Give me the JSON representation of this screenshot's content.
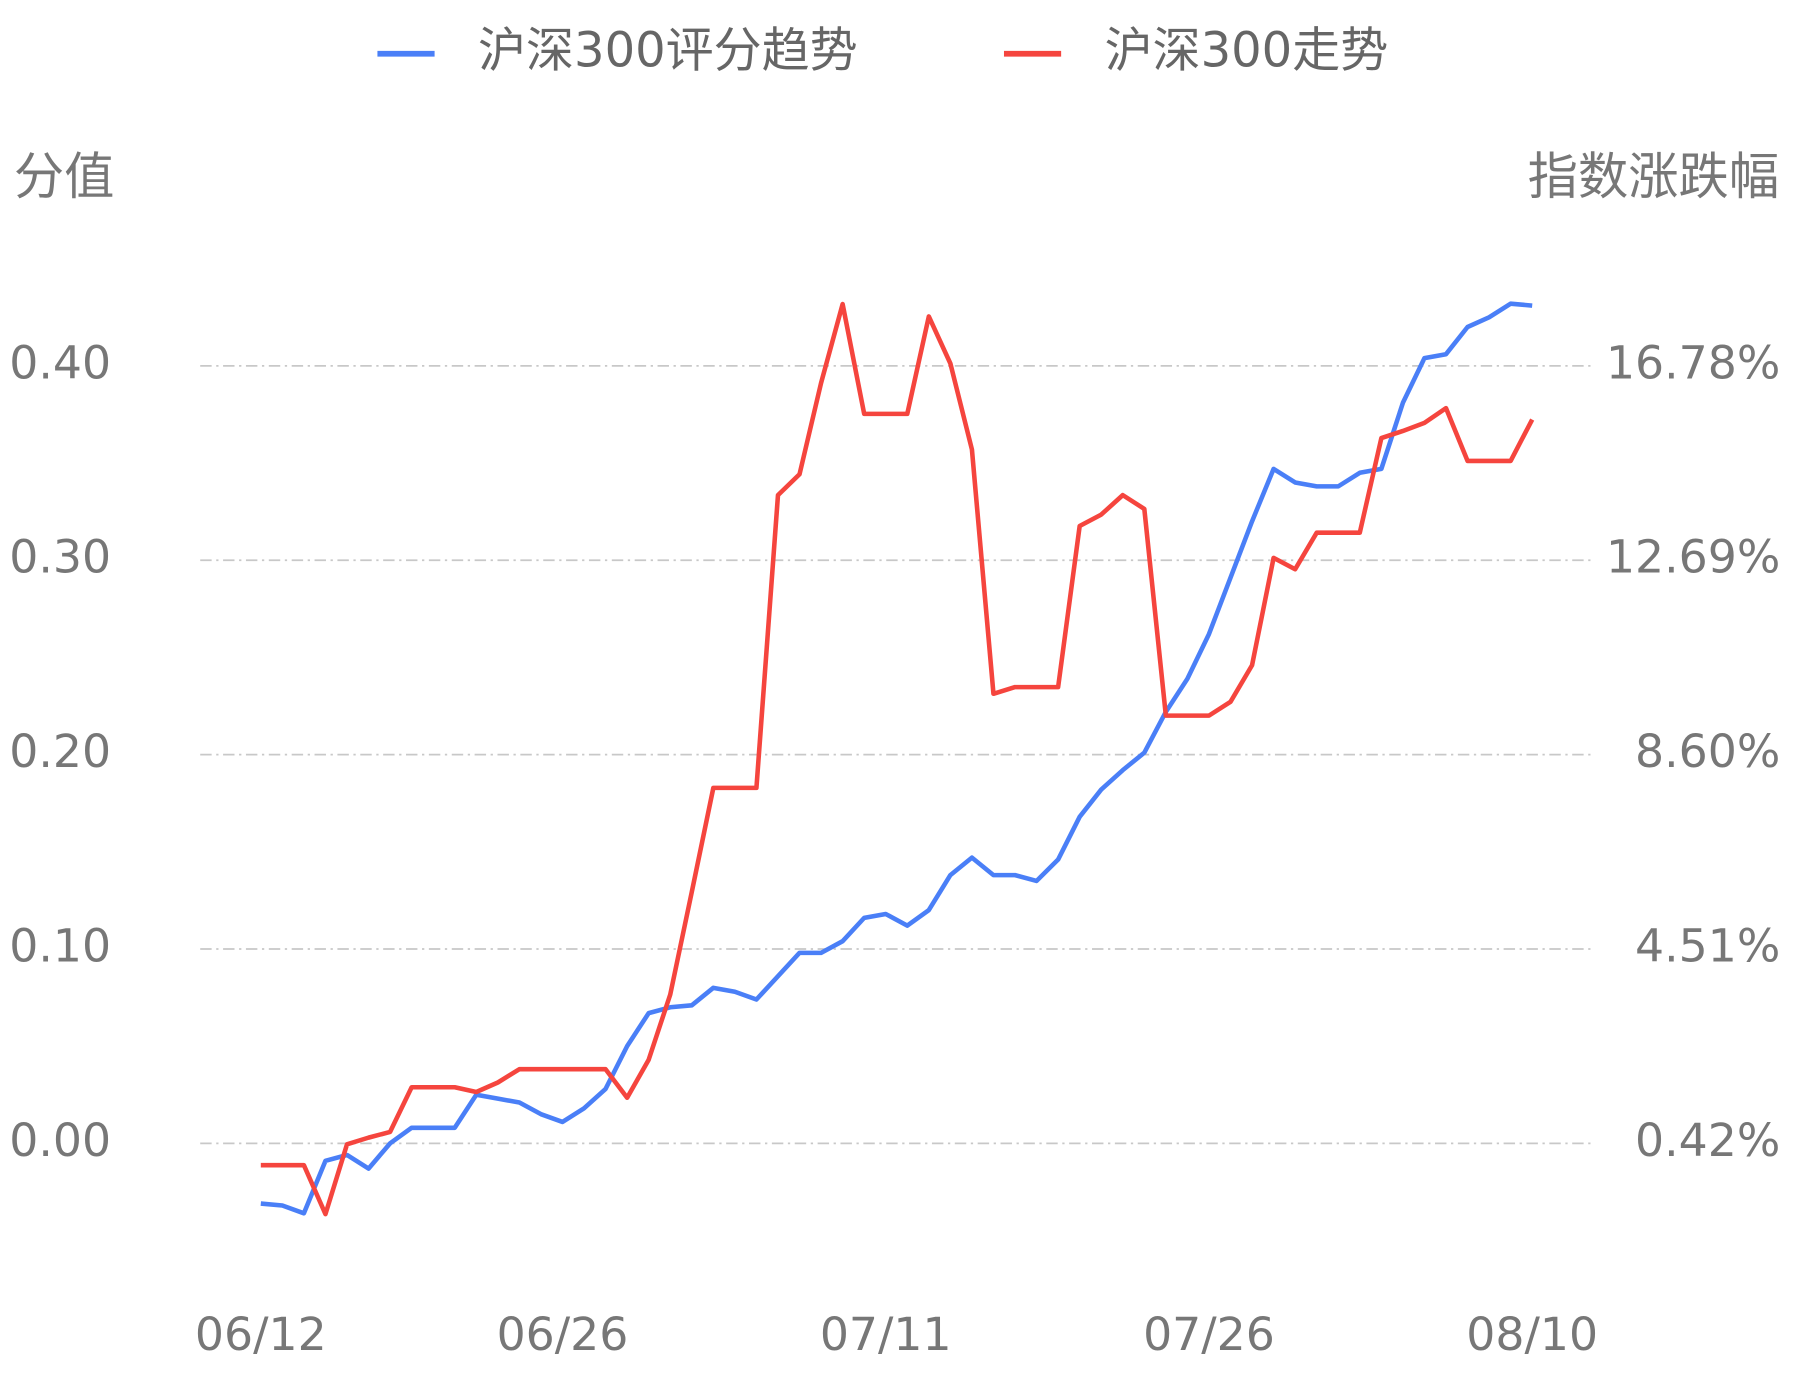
{
  "chart_data": {
    "type": "line",
    "y_label": "分值",
    "y2_label": "指数涨跌幅",
    "categories": [
      "06/12",
      null,
      null,
      null,
      null,
      null,
      null,
      null,
      null,
      null,
      null,
      null,
      null,
      null,
      "06/26",
      null,
      null,
      null,
      null,
      null,
      null,
      null,
      null,
      null,
      null,
      null,
      null,
      null,
      null,
      "07/11",
      null,
      null,
      null,
      null,
      null,
      null,
      null,
      null,
      null,
      null,
      null,
      null,
      null,
      null,
      "07/26",
      null,
      null,
      null,
      null,
      null,
      null,
      null,
      null,
      null,
      null,
      null,
      null,
      null,
      null,
      "08/10"
    ],
    "series": [
      {
        "name": "沪深300评分趋势",
        "color": "#4a7ff7",
        "axis": "y",
        "values": [
          -0.031,
          -0.032,
          -0.036,
          -0.009,
          -0.006,
          -0.013,
          0.0,
          0.008,
          0.008,
          0.008,
          0.025,
          0.023,
          0.021,
          0.015,
          0.011,
          0.018,
          0.028,
          0.05,
          0.067,
          0.07,
          0.071,
          0.08,
          0.078,
          0.074,
          0.086,
          0.098,
          0.098,
          0.104,
          0.116,
          0.118,
          0.112,
          0.12,
          0.138,
          0.147,
          0.138,
          0.138,
          0.135,
          0.146,
          0.168,
          0.182,
          0.192,
          0.201,
          0.222,
          0.239,
          0.262,
          0.291,
          0.32,
          0.347,
          0.34,
          0.338,
          0.338,
          0.345,
          0.347,
          0.381,
          0.404,
          0.406,
          0.42,
          0.425,
          0.432,
          0.431
        ]
      },
      {
        "name": "沪深300走势",
        "color": "#f5453e",
        "axis": "y2",
        "values": [
          -0.04,
          -0.04,
          -0.04,
          -1.07,
          0.4,
          0.54,
          0.66,
          1.6,
          1.6,
          1.6,
          1.5,
          1.7,
          1.98,
          1.98,
          1.98,
          1.98,
          1.98,
          1.38,
          2.18,
          3.55,
          5.71,
          7.9,
          7.9,
          7.9,
          14.06,
          14.5,
          16.42,
          18.08,
          15.77,
          15.77,
          15.77,
          17.82,
          16.83,
          15.02,
          9.88,
          10.02,
          10.02,
          10.02,
          13.41,
          13.65,
          14.06,
          13.77,
          9.42,
          9.42,
          9.42,
          9.71,
          10.48,
          12.74,
          12.5,
          13.27,
          13.27,
          13.27,
          15.26,
          15.41,
          15.58,
          15.89,
          14.78,
          14.78,
          14.78,
          15.65
        ]
      }
    ],
    "ylim": [
      -0.06,
      0.46
    ],
    "yticks": [
      {
        "value": 0,
        "label": "0.00"
      },
      {
        "value": 0.1,
        "label": "0.10"
      },
      {
        "value": 0.2,
        "label": "0.20"
      },
      {
        "value": 0.3,
        "label": "0.30"
      },
      {
        "value": 0.4,
        "label": "0.40"
      }
    ],
    "y2lim": [
      -2.034,
      19.234
    ],
    "y2ticks": [
      {
        "value": 0.42,
        "label": "0.42%"
      },
      {
        "value": 4.51,
        "label": "4.51%"
      },
      {
        "value": 8.6,
        "label": "8.60%"
      },
      {
        "value": 12.69,
        "label": "12.69%"
      },
      {
        "value": 16.78,
        "label": "16.78%"
      }
    ],
    "grid": true,
    "legend": "top"
  }
}
